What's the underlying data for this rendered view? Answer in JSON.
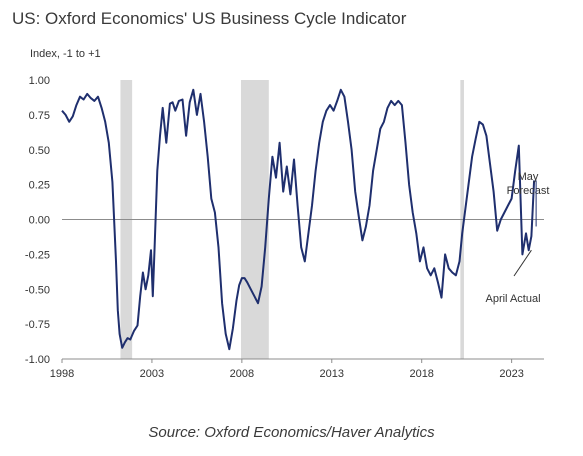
{
  "chart_data": {
    "type": "line",
    "title": "US: Oxford Economics' US Business Cycle Indicator",
    "ylabel": "Index, -1 to +1",
    "source": "Source: Oxford Economics/Haver Analytics",
    "ylim": [
      -1.0,
      1.0
    ],
    "xlim": [
      1998,
      2024.8
    ],
    "y_ticks": [
      "1.00",
      "0.75",
      "0.50",
      "0.25",
      "0.00",
      "-0.25",
      "-0.50",
      "-0.75",
      "-1.00"
    ],
    "y_tick_values": [
      1.0,
      0.75,
      0.5,
      0.25,
      0.0,
      -0.25,
      -0.5,
      -0.75,
      -1.0
    ],
    "x_ticks": [
      "1998",
      "2003",
      "2008",
      "2013",
      "2018",
      "2023"
    ],
    "x_tick_values": [
      1998,
      2003,
      2008,
      2013,
      2018,
      2023
    ],
    "recessions": [
      [
        2001.25,
        2001.9
      ],
      [
        2007.95,
        2009.5
      ],
      [
        2020.15,
        2020.35
      ]
    ],
    "line_color": "#1f2f6e",
    "recession_color": "#d9d9d9",
    "annotations": [
      {
        "text": [
          "May",
          "Forecast"
        ],
        "x": 2024.3,
        "y": 0.27
      },
      {
        "text": [
          "April Actual"
        ],
        "x": 2024.2,
        "y": -0.22
      }
    ],
    "series": [
      {
        "x": [
          1998.0,
          1998.2,
          1998.4,
          1998.6,
          1998.8,
          1999.0,
          1999.2,
          1999.4,
          1999.6,
          1999.8,
          2000.0,
          2000.2,
          2000.4,
          2000.6,
          2000.8,
          2001.0,
          2001.1,
          2001.2,
          2001.35,
          2001.5,
          2001.65,
          2001.8,
          2002.0,
          2002.2,
          2002.35,
          2002.5,
          2002.65,
          2002.8,
          2002.95,
          2003.05,
          2003.15,
          2003.3,
          2003.45,
          2003.6,
          2003.8,
          2004.0,
          2004.15,
          2004.3,
          2004.5,
          2004.7,
          2004.9,
          2005.1,
          2005.3,
          2005.5,
          2005.7,
          2005.9,
          2006.1,
          2006.3,
          2006.5,
          2006.7,
          2006.9,
          2007.1,
          2007.3,
          2007.5,
          2007.7,
          2007.85,
          2008.0,
          2008.15,
          2008.3,
          2008.5,
          2008.7,
          2008.9,
          2009.1,
          2009.3,
          2009.5,
          2009.7,
          2009.9,
          2010.1,
          2010.3,
          2010.5,
          2010.7,
          2010.9,
          2011.1,
          2011.3,
          2011.5,
          2011.7,
          2011.9,
          2012.1,
          2012.3,
          2012.5,
          2012.7,
          2012.9,
          2013.1,
          2013.3,
          2013.5,
          2013.7,
          2013.9,
          2014.1,
          2014.3,
          2014.5,
          2014.7,
          2014.9,
          2015.1,
          2015.3,
          2015.5,
          2015.7,
          2015.9,
          2016.1,
          2016.3,
          2016.5,
          2016.7,
          2016.9,
          2017.1,
          2017.3,
          2017.5,
          2017.7,
          2017.9,
          2018.1,
          2018.3,
          2018.5,
          2018.7,
          2018.9,
          2019.1,
          2019.3,
          2019.5,
          2019.7,
          2019.9,
          2020.1,
          2020.25,
          2020.4,
          2020.6,
          2020.8,
          2021.0,
          2021.2,
          2021.4,
          2021.6,
          2021.8,
          2022.0,
          2022.2,
          2022.4,
          2022.6,
          2022.8,
          2023.0,
          2023.2,
          2023.4,
          2023.6,
          2023.8,
          2023.95,
          2024.1,
          2024.25
        ],
        "y": [
          0.78,
          0.75,
          0.7,
          0.74,
          0.82,
          0.88,
          0.86,
          0.9,
          0.87,
          0.85,
          0.88,
          0.8,
          0.7,
          0.55,
          0.27,
          -0.3,
          -0.65,
          -0.82,
          -0.92,
          -0.88,
          -0.85,
          -0.86,
          -0.8,
          -0.76,
          -0.55,
          -0.38,
          -0.5,
          -0.4,
          -0.22,
          -0.55,
          -0.2,
          0.35,
          0.6,
          0.8,
          0.55,
          0.83,
          0.84,
          0.78,
          0.85,
          0.86,
          0.6,
          0.84,
          0.93,
          0.75,
          0.9,
          0.7,
          0.45,
          0.15,
          0.05,
          -0.2,
          -0.6,
          -0.82,
          -0.93,
          -0.78,
          -0.58,
          -0.47,
          -0.42,
          -0.42,
          -0.45,
          -0.5,
          -0.55,
          -0.6,
          -0.48,
          -0.2,
          0.15,
          0.45,
          0.3,
          0.55,
          0.2,
          0.38,
          0.18,
          0.43,
          0.1,
          -0.2,
          -0.3,
          -0.1,
          0.1,
          0.35,
          0.55,
          0.7,
          0.78,
          0.82,
          0.78,
          0.85,
          0.93,
          0.88,
          0.7,
          0.5,
          0.2,
          0.02,
          -0.15,
          -0.05,
          0.1,
          0.35,
          0.5,
          0.65,
          0.7,
          0.8,
          0.85,
          0.82,
          0.85,
          0.82,
          0.55,
          0.25,
          0.05,
          -0.1,
          -0.3,
          -0.2,
          -0.35,
          -0.4,
          -0.35,
          -0.45,
          -0.56,
          -0.25,
          -0.35,
          -0.38,
          -0.4,
          -0.3,
          -0.1,
          0.05,
          0.25,
          0.45,
          0.58,
          0.7,
          0.68,
          0.6,
          0.4,
          0.2,
          -0.08,
          0.0,
          0.05,
          0.1,
          0.15,
          0.35,
          0.53,
          -0.25,
          -0.1,
          -0.22,
          -0.12,
          0.28
        ]
      }
    ]
  }
}
